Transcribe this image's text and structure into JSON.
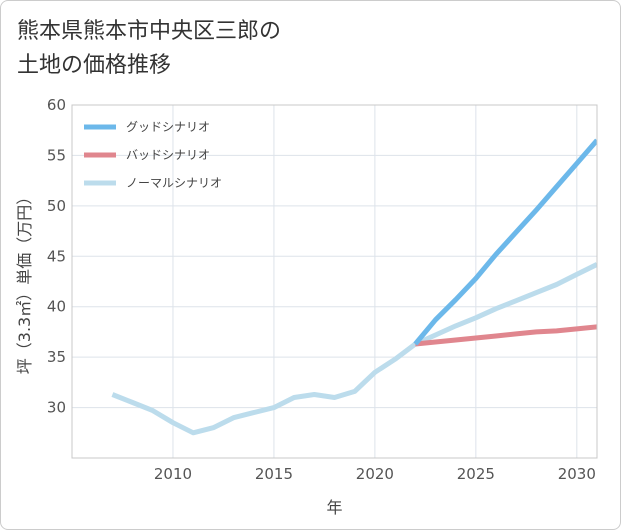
{
  "chart_data": {
    "type": "line",
    "title": "熊本県熊本市中央区三郎の土地の価格推移",
    "title_lines": [
      "熊本県熊本市中央区三郎の",
      "土地の価格推移"
    ],
    "xlabel": "年",
    "ylabel": "坪（3.3㎡）単価（万円）",
    "xlim": [
      2005,
      2031
    ],
    "ylim": [
      25,
      60
    ],
    "x_ticks": [
      2010,
      2015,
      2020,
      2025,
      2030
    ],
    "y_ticks": [
      30,
      35,
      40,
      45,
      50,
      55,
      60
    ],
    "grid": true,
    "legend_position": "top-left",
    "series": [
      {
        "name": "グッドシナリオ",
        "color": "#6cb8ea",
        "x": [
          2022,
          2023,
          2024,
          2025,
          2026,
          2027,
          2028,
          2029,
          2030,
          2031
        ],
        "y": [
          36.3,
          38.7,
          40.7,
          42.8,
          45.2,
          47.4,
          49.6,
          51.9,
          54.2,
          56.5
        ]
      },
      {
        "name": "バッドシナリオ",
        "color": "#e0868e",
        "x": [
          2022,
          2023,
          2024,
          2025,
          2026,
          2027,
          2028,
          2029,
          2030,
          2031
        ],
        "y": [
          36.3,
          36.5,
          36.7,
          36.9,
          37.1,
          37.3,
          37.5,
          37.6,
          37.8,
          38.0
        ]
      },
      {
        "name": "ノーマルシナリオ",
        "color": "#bcdcec",
        "x": [
          2007,
          2008,
          2009,
          2010,
          2011,
          2012,
          2013,
          2014,
          2015,
          2016,
          2017,
          2018,
          2019,
          2020,
          2021,
          2022,
          2023,
          2024,
          2025,
          2026,
          2027,
          2028,
          2029,
          2030,
          2031
        ],
        "y": [
          31.3,
          30.5,
          29.7,
          28.5,
          27.5,
          28.0,
          29.0,
          29.5,
          30.0,
          31.0,
          31.3,
          31.0,
          31.6,
          33.5,
          34.8,
          36.3,
          37.2,
          38.1,
          38.9,
          39.8,
          40.6,
          41.4,
          42.2,
          43.2,
          44.2
        ]
      }
    ]
  }
}
